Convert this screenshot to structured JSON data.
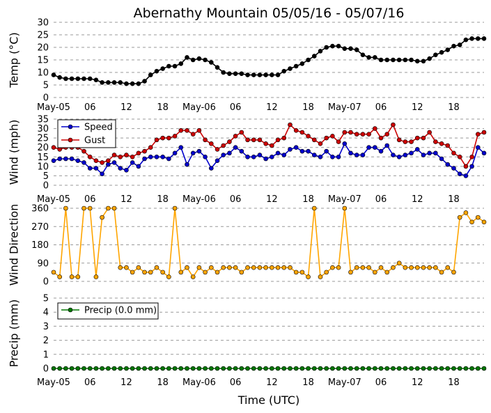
{
  "title": "Abernathy Mountain 05/05/16 - 05/07/16",
  "xlabel": "Time (UTC)",
  "x_ticks": [
    "May-05",
    "06",
    "12",
    "18",
    "May-06",
    "06",
    "12",
    "18",
    "May-07",
    "06",
    "12",
    "18"
  ],
  "x_tick_hours": [
    0,
    6,
    12,
    18,
    24,
    30,
    36,
    42,
    48,
    54,
    60,
    66
  ],
  "x_range": [
    0,
    71
  ],
  "colors": {
    "temp": "#000000",
    "speed": "#0000cc",
    "gust": "#cc0000",
    "direction": "#ffa500",
    "precip": "#007700",
    "grid": "#999999"
  },
  "chart_data": [
    {
      "type": "line",
      "name": "temperature",
      "ylabel": "Temp (°C)",
      "ylim": [
        0,
        30
      ],
      "yticks": [
        0,
        5,
        10,
        15,
        20,
        25,
        30
      ],
      "x": [
        0,
        1,
        2,
        3,
        4,
        5,
        6,
        7,
        8,
        9,
        10,
        11,
        12,
        13,
        14,
        15,
        16,
        17,
        18,
        19,
        20,
        21,
        22,
        23,
        24,
        25,
        26,
        27,
        28,
        29,
        30,
        31,
        32,
        33,
        34,
        35,
        36,
        37,
        38,
        39,
        40,
        41,
        42,
        43,
        44,
        45,
        46,
        47,
        48,
        49,
        50,
        51,
        52,
        53,
        54,
        55,
        56,
        57,
        58,
        59,
        60,
        61,
        62,
        63,
        64,
        65,
        66,
        67,
        68,
        69,
        70,
        71
      ],
      "series": [
        {
          "name": "Temp",
          "values": [
            9,
            8,
            7.5,
            7.5,
            7.5,
            7.5,
            7.5,
            7,
            6,
            6,
            6,
            6,
            5.5,
            5.5,
            5.5,
            6.5,
            9,
            10.5,
            11.5,
            12.5,
            12.5,
            13.5,
            16,
            15,
            15.5,
            15,
            14,
            12,
            10,
            9.5,
            9.5,
            9.5,
            9,
            9,
            9,
            9,
            9,
            9,
            10.5,
            11.5,
            12.5,
            13.5,
            15,
            16.5,
            18.5,
            20,
            20.5,
            20.5,
            19.5,
            19.5,
            19,
            17,
            16,
            16,
            15,
            15,
            15,
            15,
            15,
            15,
            14.5,
            14.5,
            15.5,
            17,
            18,
            19,
            20.5,
            21,
            23,
            23.5,
            23.5,
            23.5
          ]
        }
      ]
    },
    {
      "type": "line",
      "name": "wind",
      "ylabel": "Wind (mph)",
      "ylim": [
        0,
        35
      ],
      "yticks": [
        0,
        5,
        10,
        15,
        20,
        25,
        30,
        35
      ],
      "legend": "top-left",
      "x": [
        0,
        1,
        2,
        3,
        4,
        5,
        6,
        7,
        8,
        9,
        10,
        11,
        12,
        13,
        14,
        15,
        16,
        17,
        18,
        19,
        20,
        21,
        22,
        23,
        24,
        25,
        26,
        27,
        28,
        29,
        30,
        31,
        32,
        33,
        34,
        35,
        36,
        37,
        38,
        39,
        40,
        41,
        42,
        43,
        44,
        45,
        46,
        47,
        48,
        49,
        50,
        51,
        52,
        53,
        54,
        55,
        56,
        57,
        58,
        59,
        60,
        61,
        62,
        63,
        64,
        65,
        66,
        67,
        68,
        69,
        70,
        71
      ],
      "series": [
        {
          "name": "Speed",
          "values": [
            13,
            14,
            14,
            14,
            13,
            12,
            9,
            9,
            6,
            11,
            12,
            9,
            8,
            12,
            10,
            14,
            15,
            15,
            15,
            14,
            17,
            20,
            11,
            17,
            18,
            15,
            9,
            13,
            16,
            17,
            20,
            18,
            15,
            15,
            16,
            14,
            15,
            17,
            16,
            19,
            20,
            18,
            18,
            16,
            15,
            18,
            15,
            15,
            22,
            17,
            16,
            16,
            20,
            20,
            18,
            21,
            16,
            15,
            16,
            17,
            19,
            16,
            17,
            17,
            14,
            11,
            9,
            6,
            5,
            10,
            20,
            17
          ]
        },
        {
          "name": "Gust",
          "values": [
            20,
            19,
            20,
            20,
            20,
            18,
            15,
            13,
            12,
            13,
            16,
            15,
            16,
            15,
            17,
            18,
            20,
            24,
            25,
            25,
            26,
            29,
            29,
            27,
            29,
            24,
            22,
            19,
            21,
            23,
            26,
            28,
            24,
            24,
            24,
            22,
            21,
            24,
            25,
            32,
            29,
            28,
            26,
            24,
            22,
            25,
            26,
            23,
            28,
            28,
            27,
            27,
            27,
            30,
            25,
            27,
            32,
            24,
            23,
            23,
            25,
            25,
            28,
            23,
            22,
            21,
            17,
            15,
            10,
            15,
            27,
            28
          ]
        }
      ]
    },
    {
      "type": "line",
      "name": "direction",
      "ylabel": "Wind Direction",
      "ylim": [
        0,
        360
      ],
      "yticks": [
        0,
        90,
        180,
        270,
        360
      ],
      "x": [
        0,
        1,
        2,
        3,
        4,
        5,
        6,
        7,
        8,
        9,
        10,
        11,
        12,
        13,
        14,
        15,
        16,
        17,
        18,
        19,
        20,
        21,
        22,
        23,
        24,
        25,
        26,
        27,
        28,
        29,
        30,
        31,
        32,
        33,
        34,
        35,
        36,
        37,
        38,
        39,
        40,
        41,
        42,
        43,
        44,
        45,
        46,
        47,
        48,
        49,
        50,
        51,
        52,
        53,
        54,
        55,
        56,
        57,
        58,
        59,
        60,
        61,
        62,
        63,
        64,
        65,
        66,
        67,
        68,
        69,
        70,
        71
      ],
      "series": [
        {
          "name": "Direction",
          "values": [
            45,
            22,
            360,
            22,
            22,
            360,
            360,
            22,
            315,
            360,
            360,
            68,
            68,
            45,
            68,
            45,
            45,
            68,
            45,
            22,
            360,
            45,
            68,
            22,
            68,
            45,
            68,
            45,
            68,
            68,
            68,
            45,
            68,
            68,
            68,
            68,
            68,
            68,
            68,
            68,
            45,
            45,
            22,
            360,
            22,
            45,
            68,
            68,
            360,
            45,
            68,
            68,
            68,
            45,
            68,
            45,
            68,
            90,
            68,
            68,
            68,
            68,
            68,
            68,
            45,
            68,
            45,
            315,
            338,
            292,
            315,
            292
          ]
        }
      ]
    },
    {
      "type": "line",
      "name": "precip",
      "ylabel": "Precip (mm)",
      "ylim": [
        0,
        5
      ],
      "yticks": [
        0,
        1,
        2,
        3,
        4,
        5
      ],
      "legend": "top-left",
      "x": [
        0,
        1,
        2,
        3,
        4,
        5,
        6,
        7,
        8,
        9,
        10,
        11,
        12,
        13,
        14,
        15,
        16,
        17,
        18,
        19,
        20,
        21,
        22,
        23,
        24,
        25,
        26,
        27,
        28,
        29,
        30,
        31,
        32,
        33,
        34,
        35,
        36,
        37,
        38,
        39,
        40,
        41,
        42,
        43,
        44,
        45,
        46,
        47,
        48,
        49,
        50,
        51,
        52,
        53,
        54,
        55,
        56,
        57,
        58,
        59,
        60,
        61,
        62,
        63,
        64,
        65,
        66,
        67,
        68,
        69,
        70,
        71
      ],
      "series": [
        {
          "name": "Precip (0.0 mm)",
          "values": [
            0,
            0,
            0,
            0,
            0,
            0,
            0,
            0,
            0,
            0,
            0,
            0,
            0,
            0,
            0,
            0,
            0,
            0,
            0,
            0,
            0,
            0,
            0,
            0,
            0,
            0,
            0,
            0,
            0,
            0,
            0,
            0,
            0,
            0,
            0,
            0,
            0,
            0,
            0,
            0,
            0,
            0,
            0,
            0,
            0,
            0,
            0,
            0,
            0,
            0,
            0,
            0,
            0,
            0,
            0,
            0,
            0,
            0,
            0,
            0,
            0,
            0,
            0,
            0,
            0,
            0,
            0,
            0,
            0,
            0,
            0,
            0
          ]
        }
      ]
    }
  ]
}
